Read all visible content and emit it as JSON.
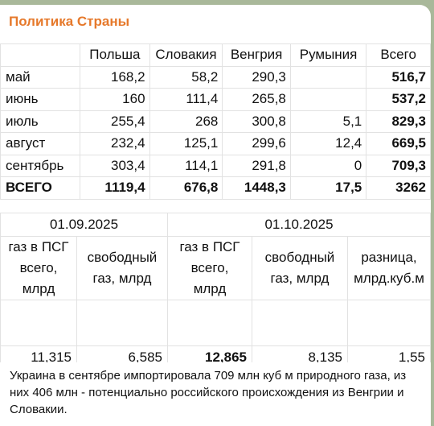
{
  "channel": {
    "name": "Политика Страны"
  },
  "table1": {
    "headers": [
      "",
      "Польша",
      "Словакия",
      "Венгрия",
      "Румыния",
      "Всего"
    ],
    "rows": [
      [
        "май",
        "168,2",
        "58,2",
        "290,3",
        "",
        "516,7"
      ],
      [
        "июнь",
        "160",
        "111,4",
        "265,8",
        "",
        "537,2"
      ],
      [
        "июль",
        "255,4",
        "268",
        "300,8",
        "5,1",
        "829,3"
      ],
      [
        "август",
        "232,4",
        "125,1",
        "299,6",
        "12,4",
        "669,5"
      ],
      [
        "сентябрь",
        "303,4",
        "114,1",
        "291,8",
        "0",
        "709,3"
      ],
      [
        "ВСЕГО",
        "1119,4",
        "676,8",
        "1448,3",
        "17,5",
        "3262"
      ]
    ]
  },
  "table2": {
    "dates": [
      "01.09.2025",
      "01.10.2025"
    ],
    "headers": [
      [
        "газ в ПСГ",
        "всего,",
        "млрд"
      ],
      [
        "свободный",
        "газ, млрд"
      ],
      [
        "газ в ПСГ",
        "всего,",
        "млрд"
      ],
      [
        "свободный",
        "газ, млрд"
      ],
      [
        "разница,",
        "млрд.куб.м"
      ]
    ],
    "values": [
      "11,315",
      "6,585",
      "12,865",
      "8,135",
      "1,55"
    ]
  },
  "caption": "Украина в сентябре импортировала 709 млн куб м природного газа, из них 406 млн - потенциально российского происхождения из Венгрии и Словакии."
}
